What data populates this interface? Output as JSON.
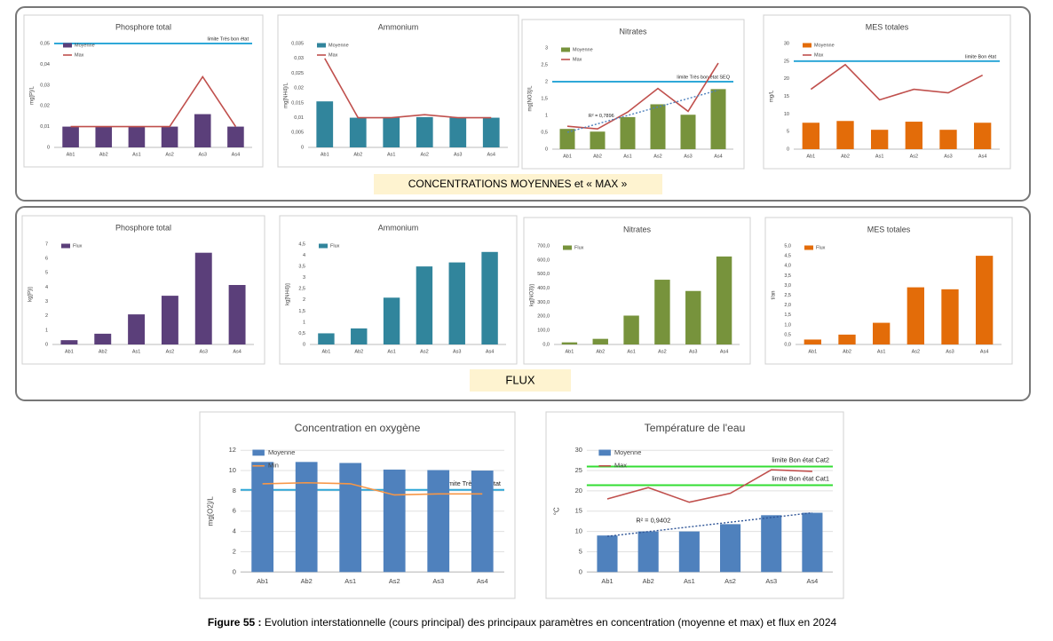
{
  "chart_data": [
    {
      "type": "bar",
      "title": "Phosphore total",
      "y_label": "mg[P]/L",
      "categories": [
        "Ab1",
        "Ab2",
        "As1",
        "As2",
        "As3",
        "As4"
      ],
      "series": [
        {
          "name": "Moyenne",
          "type": "bar",
          "color": "#5b3f7a",
          "values": [
            0.01,
            0.01,
            0.01,
            0.01,
            0.016,
            0.01
          ]
        },
        {
          "name": "Max",
          "type": "line",
          "color": "#c0504d",
          "values": [
            0.01,
            0.01,
            0.01,
            0.01,
            0.034,
            0.01
          ]
        }
      ],
      "reference_lines": [
        {
          "value": 0.05,
          "label": "limite Très bon état",
          "color": "#2fa8d8"
        }
      ],
      "ylim": [
        0,
        0.05
      ],
      "yticks": [
        0,
        {
          "value": 0.01,
          "label": "0,01"
        },
        {
          "value": 0.02,
          "label": "0,02"
        },
        {
          "value": 0.03,
          "label": "0,03"
        },
        {
          "value": 0.04,
          "label": "0,04"
        },
        {
          "value": 0.05,
          "label": "0,05"
        }
      ],
      "grid": false
    },
    {
      "type": "bar",
      "title": "Ammonium",
      "y_label": "mg[NH4]/L",
      "categories": [
        "Ab1",
        "Ab2",
        "As1",
        "As2",
        "As3",
        "As4"
      ],
      "series": [
        {
          "name": "Moyenne",
          "type": "bar",
          "color": "#31859c",
          "values": [
            0.0155,
            0.01,
            0.01,
            0.0102,
            0.01,
            0.01
          ]
        },
        {
          "name": "Max",
          "type": "line",
          "color": "#c0504d",
          "values": [
            0.03,
            0.01,
            0.01,
            0.011,
            0.01,
            0.01
          ]
        }
      ],
      "ylim": [
        0,
        0.035
      ],
      "yticks": [
        0,
        {
          "value": 0.005,
          "label": "0,005"
        },
        {
          "value": 0.01,
          "label": "0,01"
        },
        {
          "value": 0.015,
          "label": "0,015"
        },
        {
          "value": 0.02,
          "label": "0,02"
        },
        {
          "value": 0.025,
          "label": "0,025"
        },
        {
          "value": 0.03,
          "label": "0,03"
        },
        {
          "value": 0.035,
          "label": "0,035"
        }
      ],
      "grid": false
    },
    {
      "type": "bar",
      "title": "Nitrates",
      "y_label": "mg[NO3]/L",
      "categories": [
        "Ab1",
        "Ab2",
        "As1",
        "As2",
        "As3",
        "As4"
      ],
      "series": [
        {
          "name": "Moyenne",
          "type": "bar",
          "color": "#77933c",
          "values": [
            0.6,
            0.52,
            0.95,
            1.33,
            1.02,
            1.78
          ]
        },
        {
          "name": "Max",
          "type": "line",
          "color": "#c0504d",
          "values": [
            0.68,
            0.6,
            1.1,
            1.8,
            1.12,
            2.55
          ]
        }
      ],
      "reference_lines": [
        {
          "value": 2,
          "label": "limite Très bon état SEQ",
          "color": "#2fa8d8"
        }
      ],
      "trendline": {
        "label": "R² = 0,7896",
        "color": "#4f81bd",
        "values": [
          0.5,
          0.75,
          1.0,
          1.25,
          1.5,
          1.75
        ]
      },
      "ylim": [
        0,
        3
      ],
      "yticks": [
        0,
        {
          "value": 0.5,
          "label": "0,5"
        },
        1,
        {
          "value": 1.5,
          "label": "1,5"
        },
        2,
        {
          "value": 2.5,
          "label": "2,5"
        },
        3
      ],
      "grid": false
    },
    {
      "type": "bar",
      "title": "MES totales",
      "y_label": "mg/L",
      "categories": [
        "Ab1",
        "Ab2",
        "As1",
        "As2",
        "As3",
        "As4"
      ],
      "series": [
        {
          "name": "Moyenne",
          "type": "bar",
          "color": "#e36c09",
          "values": [
            7.5,
            8,
            5.5,
            7.8,
            5.5,
            7.5
          ]
        },
        {
          "name": "Max",
          "type": "line",
          "color": "#c0504d",
          "values": [
            17,
            24,
            14,
            17,
            16,
            21
          ]
        }
      ],
      "reference_lines": [
        {
          "value": 25,
          "label": "limite Bon état",
          "color": "#2fa8d8"
        }
      ],
      "ylim": [
        0,
        30
      ],
      "yticks": [
        0,
        5,
        10,
        15,
        20,
        25,
        30
      ],
      "grid": false
    },
    {
      "type": "bar",
      "title": "Phosphore total",
      "y_label": "kg[P]/j",
      "categories": [
        "Ab1",
        "Ab2",
        "As1",
        "As2",
        "As3",
        "As4"
      ],
      "series": [
        {
          "name": "Flux",
          "type": "bar",
          "color": "#5b3f7a",
          "values": [
            0.3,
            0.75,
            2.1,
            3.4,
            6.4,
            4.15
          ]
        }
      ],
      "ylim": [
        0,
        7
      ],
      "yticks": [
        0,
        1,
        2,
        3,
        4,
        5,
        6,
        7
      ],
      "grid": false
    },
    {
      "type": "bar",
      "title": "Ammonium",
      "y_label": "kg[NH4]/j",
      "categories": [
        "Ab1",
        "Ab2",
        "As1",
        "As2",
        "As3",
        "As4"
      ],
      "series": [
        {
          "name": "Flux",
          "type": "bar",
          "color": "#31859c",
          "values": [
            0.5,
            0.72,
            2.1,
            3.5,
            3.68,
            4.15
          ]
        }
      ],
      "ylim": [
        0,
        4.5
      ],
      "yticks": [
        0,
        {
          "value": 0.5,
          "label": "0,5"
        },
        1,
        {
          "value": 1.5,
          "label": "1,5"
        },
        2,
        {
          "value": 2.5,
          "label": "2,5"
        },
        3,
        {
          "value": 3.5,
          "label": "3,5"
        },
        4,
        {
          "value": 4.5,
          "label": "4,5"
        }
      ],
      "grid": false
    },
    {
      "type": "bar",
      "title": "Nitrates",
      "y_label": "kg[NO3]/j",
      "categories": [
        "Ab1",
        "Ab2",
        "As1",
        "As2",
        "As3",
        "As4"
      ],
      "series": [
        {
          "name": "Flux",
          "type": "bar",
          "color": "#77933c",
          "values": [
            15,
            40,
            205,
            460,
            380,
            625
          ]
        }
      ],
      "ylim": [
        0,
        700
      ],
      "yticks": [
        {
          "value": 0,
          "label": "0,0"
        },
        {
          "value": 100,
          "label": "100,0"
        },
        {
          "value": 200,
          "label": "200,0"
        },
        {
          "value": 300,
          "label": "300,0"
        },
        {
          "value": 400,
          "label": "400,0"
        },
        {
          "value": 500,
          "label": "500,0"
        },
        {
          "value": 600,
          "label": "600,0"
        },
        {
          "value": 700,
          "label": "700,0"
        }
      ],
      "grid": false
    },
    {
      "type": "bar",
      "title": "MES totales",
      "y_label": "t/an",
      "categories": [
        "Ab1",
        "Ab2",
        "As1",
        "As2",
        "As3",
        "As4"
      ],
      "series": [
        {
          "name": "Flux",
          "type": "bar",
          "color": "#e36c09",
          "values": [
            0.25,
            0.5,
            1.1,
            2.9,
            2.8,
            4.5
          ]
        }
      ],
      "ylim": [
        0,
        5
      ],
      "yticks": [
        {
          "value": 0,
          "label": "0,0"
        },
        {
          "value": 0.5,
          "label": "0,5"
        },
        {
          "value": 1,
          "label": "1,0"
        },
        {
          "value": 1.5,
          "label": "1,5"
        },
        {
          "value": 2,
          "label": "2,0"
        },
        {
          "value": 2.5,
          "label": "2,5"
        },
        {
          "value": 3,
          "label": "3,0"
        },
        {
          "value": 3.5,
          "label": "3,5"
        },
        {
          "value": 4,
          "label": "4,0"
        },
        {
          "value": 4.5,
          "label": "4,5"
        },
        {
          "value": 5,
          "label": "5,0"
        }
      ],
      "grid": false
    },
    {
      "type": "bar",
      "title": "Concentration en oxygène",
      "y_label": "mg[O2]/L",
      "categories": [
        "Ab1",
        "Ab2",
        "As1",
        "As2",
        "As3",
        "As4"
      ],
      "series": [
        {
          "name": "Moyenne",
          "type": "bar",
          "color": "#4f81bd",
          "values": [
            10.85,
            10.85,
            10.75,
            10.1,
            10.05,
            10
          ]
        },
        {
          "name": "Min",
          "type": "line",
          "color": "#f79646",
          "values": [
            8.7,
            8.8,
            8.7,
            7.6,
            7.7,
            7.7
          ]
        }
      ],
      "reference_lines": [
        {
          "value": 8.1,
          "label": "limite Très bon état",
          "color": "#2fa8d8"
        }
      ],
      "ylim": [
        0,
        12
      ],
      "yticks": [
        0,
        2,
        4,
        6,
        8,
        10,
        12
      ],
      "grid": true
    },
    {
      "type": "bar",
      "title": "Température de l'eau",
      "y_label": "°C",
      "categories": [
        "Ab1",
        "Ab2",
        "As1",
        "As2",
        "As3",
        "As4"
      ],
      "series": [
        {
          "name": "Moyenne",
          "type": "bar",
          "color": "#4f81bd",
          "values": [
            9,
            10,
            10,
            11.8,
            14,
            14.6
          ]
        },
        {
          "name": "Max",
          "type": "line",
          "color": "#c0504d",
          "values": [
            18,
            20.8,
            17.2,
            19.4,
            25.2,
            24.8
          ]
        }
      ],
      "reference_lines": [
        {
          "value": 26,
          "label": "limite Bon état Cat2",
          "color": "#33dd33"
        },
        {
          "value": 21.4,
          "label": "limite Bon état Cat1",
          "color": "#33dd33"
        }
      ],
      "trendline": {
        "label": "R² = 0,9402",
        "color": "#2f5597",
        "values": [
          8.8,
          9.96,
          11.12,
          12.28,
          13.44,
          14.6
        ]
      },
      "ylim": [
        0,
        30
      ],
      "yticks": [
        0,
        5,
        10,
        15,
        20,
        25,
        30
      ],
      "grid": true
    }
  ],
  "group_labels": [
    "CONCENTRATIONS MOYENNES et « MAX »",
    "FLUX"
  ],
  "caption": {
    "label": "Figure 55 :",
    "text": " Evolution interstationnelle (cours principal) des principaux paramètres en concentration (moyenne et max) et flux en 2024"
  }
}
